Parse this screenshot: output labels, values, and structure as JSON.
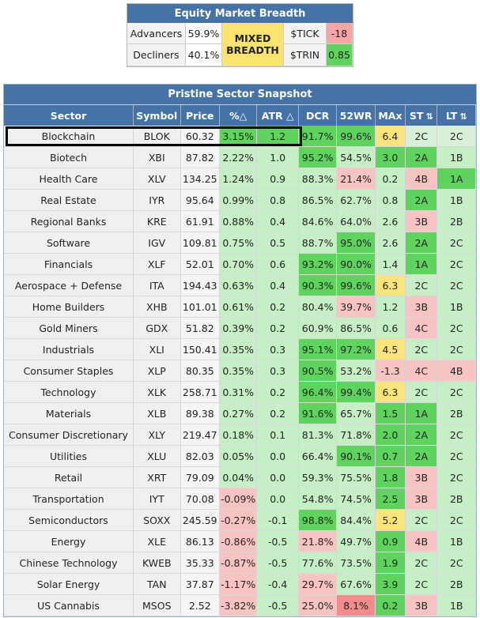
{
  "breadth": {
    "title": "Equity Market Breadth",
    "advancers_label": "Advancers",
    "advancers_value": "59.9%",
    "decliners_label": "Decliners",
    "decliners_value": "40.1%",
    "status_line1": "MIXED",
    "status_line2": "BREADTH",
    "tick_label": "$TICK",
    "tick_value": "-18",
    "trin_label": "$TRIN",
    "trin_value": "0.85",
    "colors": {
      "status": "#fbe46e",
      "tick": "#f28b8b",
      "trin": "#5ed35e"
    }
  },
  "snapshot": {
    "title": "Pristine Sector Snapshot",
    "columns": [
      "Sector",
      "Symbol",
      "Price",
      "%△",
      "ATR △",
      "DCR",
      "52WR",
      "MAx",
      "ST",
      "LT"
    ],
    "sort_icon": "⇅",
    "highlighted_row": "Blockchain",
    "rows": [
      [
        "Blockchain",
        "BLOK",
        "60.32",
        "3.15%",
        "1.2",
        "91.7%",
        "99.6%",
        "6.4",
        "2C",
        "2C"
      ],
      [
        "Biotech",
        "XBI",
        "87.82",
        "2.22%",
        "1.0",
        "95.2%",
        "54.5%",
        "3.0",
        "2A",
        "1B"
      ],
      [
        "Health Care",
        "XLV",
        "134.25",
        "1.24%",
        "0.9",
        "88.3%",
        "21.4%",
        "0.2",
        "4B",
        "1A"
      ],
      [
        "Real Estate",
        "IYR",
        "95.64",
        "0.99%",
        "0.8",
        "86.5%",
        "62.7%",
        "0.8",
        "2A",
        "1B"
      ],
      [
        "Regional Banks",
        "KRE",
        "61.91",
        "0.88%",
        "0.4",
        "84.6%",
        "64.0%",
        "2.6",
        "3B",
        "2B"
      ],
      [
        "Software",
        "IGV",
        "109.81",
        "0.75%",
        "0.5",
        "88.7%",
        "95.0%",
        "2.6",
        "2A",
        "2C"
      ],
      [
        "Financials",
        "XLF",
        "52.01",
        "0.70%",
        "0.6",
        "93.2%",
        "90.0%",
        "1.4",
        "1A",
        "2C"
      ],
      [
        "Aerospace + Defense",
        "ITA",
        "194.43",
        "0.63%",
        "0.4",
        "90.3%",
        "99.6%",
        "6.3",
        "2C",
        "2C"
      ],
      [
        "Home Builders",
        "XHB",
        "101.01",
        "0.61%",
        "0.2",
        "80.4%",
        "39.7%",
        "1.2",
        "3B",
        "1B"
      ],
      [
        "Gold Miners",
        "GDX",
        "51.82",
        "0.39%",
        "0.2",
        "60.9%",
        "86.5%",
        "0.6",
        "4C",
        "2C"
      ],
      [
        "Industrials",
        "XLI",
        "150.41",
        "0.35%",
        "0.3",
        "95.1%",
        "97.2%",
        "4.5",
        "2C",
        "2C"
      ],
      [
        "Consumer Staples",
        "XLP",
        "80.35",
        "0.35%",
        "0.3",
        "90.5%",
        "53.2%",
        "-1.3",
        "4C",
        "4B"
      ],
      [
        "Technology",
        "XLK",
        "258.71",
        "0.31%",
        "0.2",
        "96.4%",
        "99.4%",
        "6.3",
        "2C",
        "2C"
      ],
      [
        "Materials",
        "XLB",
        "89.38",
        "0.27%",
        "0.2",
        "91.6%",
        "65.7%",
        "1.5",
        "1A",
        "2B"
      ],
      [
        "Consumer Discretionary",
        "XLY",
        "219.47",
        "0.18%",
        "0.1",
        "81.3%",
        "71.8%",
        "2.0",
        "2A",
        "2C"
      ],
      [
        "Utilities",
        "XLU",
        "82.03",
        "0.05%",
        "0.0",
        "66.4%",
        "90.1%",
        "0.7",
        "2A",
        "2C"
      ],
      [
        "Retail",
        "XRT",
        "79.09",
        "0.04%",
        "0.0",
        "59.3%",
        "75.5%",
        "1.8",
        "3B",
        "2C"
      ],
      [
        "Transportation",
        "IYT",
        "70.08",
        "-0.09%",
        "0.0",
        "54.8%",
        "74.5%",
        "2.5",
        "3B",
        "2B"
      ],
      [
        "Semiconductors",
        "SOXX",
        "245.59",
        "-0.27%",
        "-0.1",
        "98.8%",
        "84.4%",
        "5.2",
        "2C",
        "2C"
      ],
      [
        "Energy",
        "XLE",
        "86.13",
        "-0.86%",
        "-0.5",
        "21.8%",
        "49.7%",
        "0.9",
        "4B",
        "1B"
      ],
      [
        "Chinese Technology",
        "KWEB",
        "35.33",
        "-0.87%",
        "-0.5",
        "77.6%",
        "73.5%",
        "1.9",
        "2C",
        "2C"
      ],
      [
        "Solar Energy",
        "TAN",
        "37.87",
        "-1.17%",
        "-0.4",
        "29.7%",
        "67.6%",
        "3.9",
        "2C",
        "2B"
      ],
      [
        "US Cannabis",
        "MSOS",
        "2.52",
        "-3.82%",
        "-0.5",
        "25.0%",
        "8.1%",
        "0.2",
        "3B",
        "1B"
      ]
    ],
    "cell_colors": [
      [
        "g2",
        "g2",
        "g2",
        "g2",
        "y1",
        "na",
        "na"
      ],
      [
        "g1",
        "g1",
        "g2",
        "g1",
        "g2",
        "g2",
        "g1"
      ],
      [
        "g1",
        "g1",
        "g1",
        "r1",
        "g1",
        "r1",
        "g2"
      ],
      [
        "g1",
        "g1",
        "g1",
        "g1",
        "g1",
        "g2",
        "g1"
      ],
      [
        "g1",
        "g1",
        "g1",
        "g1",
        "g1",
        "r1",
        "g1"
      ],
      [
        "g1",
        "g1",
        "g1",
        "g2",
        "g1",
        "g2",
        "g1"
      ],
      [
        "g1",
        "g1",
        "g2",
        "g2",
        "g1",
        "g2",
        "g1"
      ],
      [
        "g1",
        "g1",
        "g2",
        "g2",
        "y1",
        "g1",
        "g1"
      ],
      [
        "g1",
        "g1",
        "g1",
        "r1",
        "g1",
        "r1",
        "g1"
      ],
      [
        "g1",
        "g1",
        "g1",
        "g1",
        "g1",
        "r1",
        "g1"
      ],
      [
        "g1",
        "g1",
        "g2",
        "g2",
        "y1",
        "g1",
        "g1"
      ],
      [
        "g1",
        "g1",
        "g2",
        "g1",
        "r1",
        "r1",
        "r1"
      ],
      [
        "g1",
        "g1",
        "g2",
        "g2",
        "y1",
        "g1",
        "g1"
      ],
      [
        "g1",
        "g1",
        "g2",
        "g1",
        "g2",
        "g2",
        "g1"
      ],
      [
        "g1",
        "g1",
        "g1",
        "g1",
        "g2",
        "g2",
        "g1"
      ],
      [
        "g1",
        "g1",
        "g1",
        "g2",
        "g2",
        "g2",
        "g1"
      ],
      [
        "g1",
        "g1",
        "g1",
        "g1",
        "g2",
        "r1",
        "g1"
      ],
      [
        "r1",
        "g1",
        "g1",
        "g1",
        "g2",
        "r1",
        "g1"
      ],
      [
        "r1",
        "g1",
        "g2",
        "g1",
        "y1",
        "g1",
        "g1"
      ],
      [
        "r1",
        "g1",
        "r1",
        "g1",
        "g2",
        "r1",
        "g1"
      ],
      [
        "r1",
        "g1",
        "g1",
        "g1",
        "g2",
        "g1",
        "g1"
      ],
      [
        "r1",
        "g1",
        "r1",
        "g1",
        "g2",
        "g1",
        "g1"
      ],
      [
        "r1",
        "g1",
        "r1",
        "r2",
        "g2",
        "r1",
        "g1"
      ]
    ]
  }
}
